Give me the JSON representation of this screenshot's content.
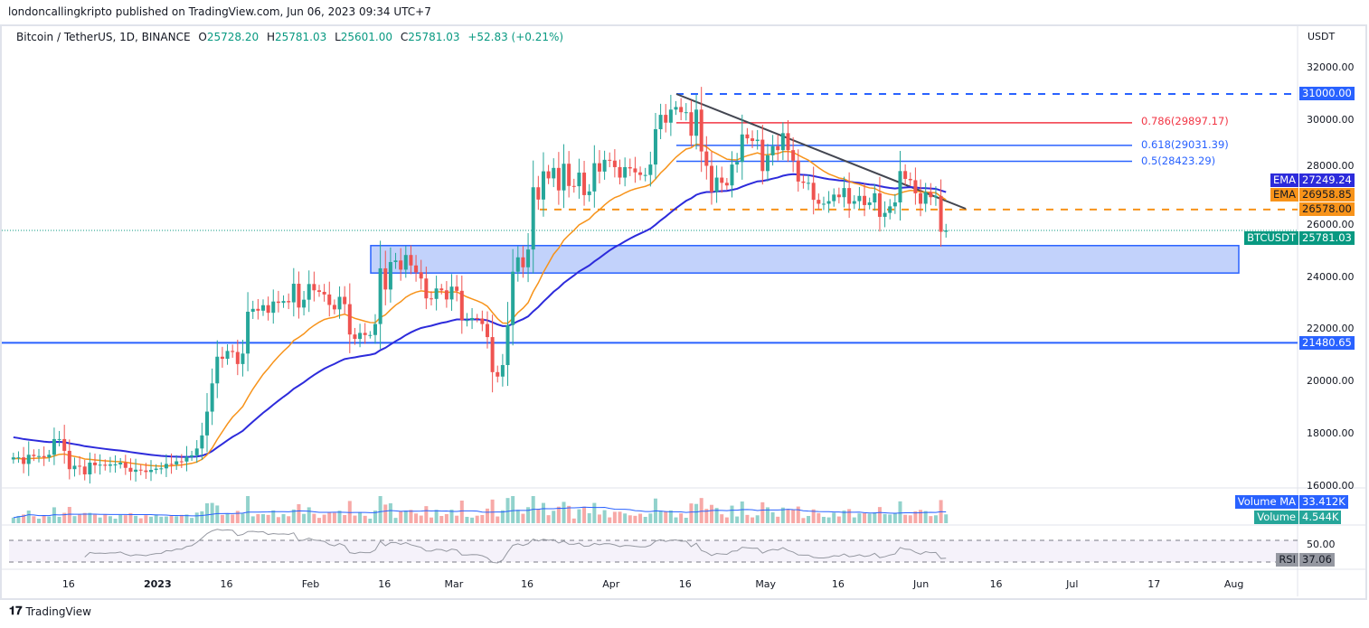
{
  "header": {
    "published": "londoncallingkripto published on TradingView.com, Jun 06, 2023 09:34 UTC+7"
  },
  "legend": {
    "symbol": "Bitcoin / TetherUS, 1D, BINANCE",
    "o_label": "O",
    "o": "25728.20",
    "h_label": "H",
    "h": "25781.03",
    "l_label": "L",
    "l": "25601.00",
    "c_label": "C",
    "c": "25781.03",
    "change": "+52.83 (+0.21%)"
  },
  "currency": "USDT",
  "tags": {
    "level_31000": "31000.00",
    "level_21480": "21480.65",
    "ema1_label": "EMA",
    "ema1_value": "27249.24",
    "ema2_label": "EMA",
    "ema2_value": "26958.85",
    "level_26578": "26578.00",
    "symbol_label": "BTCUSDT",
    "symbol_price": "25781.03",
    "vol_ma_label": "Volume MA",
    "vol_ma_value": "33.412K",
    "vol_label": "Volume",
    "vol_value": "4.544K",
    "rsi_label": "RSI",
    "rsi_value": "37.06",
    "rsi_level": "50.00"
  },
  "fib": {
    "f786": "0.786(29897.17)",
    "f618": "0.618(29031.39)",
    "f5": "0.5(28423.29)"
  },
  "colors": {
    "up": "#26a69a",
    "down": "#ef5350",
    "ema_fast": "#f7931a",
    "ema_slow": "#2d2bdb",
    "line": "#2962ff",
    "fib786": "#f23645",
    "zone": "#bbcdfb"
  },
  "footer": {
    "brand": "TradingView"
  },
  "chart_data": {
    "type": "candlestick",
    "title": "Bitcoin / TetherUS, 1D, BINANCE",
    "start_date": "2022-12-05",
    "ylim": [
      16000,
      32000
    ],
    "y_ticks": [
      "32000.00",
      "30000.00",
      "28000.00",
      "26000.00",
      "24000.00",
      "22000.00",
      "20000.00",
      "18000.00",
      "16000.00"
    ],
    "x_ticks": [
      {
        "label": "16",
        "day": -16
      },
      {
        "label": "2023",
        "day": 0
      },
      {
        "label": "16",
        "day": 15
      },
      {
        "label": "Feb",
        "day": 31
      },
      {
        "label": "16",
        "day": 46
      },
      {
        "label": "Mar",
        "day": 59
      },
      {
        "label": "16",
        "day": 74
      },
      {
        "label": "Apr",
        "day": 90
      },
      {
        "label": "16",
        "day": 105
      },
      {
        "label": "May",
        "day": 120
      },
      {
        "label": "16",
        "day": 135
      },
      {
        "label": "Jun",
        "day": 151
      },
      {
        "label": "16",
        "day": 166
      },
      {
        "label": "Jul",
        "day": 181
      },
      {
        "label": "17",
        "day": 197
      },
      {
        "label": "Aug",
        "day": 212
      }
    ],
    "closes": [
      17100,
      17100,
      16850,
      17200,
      17150,
      17150,
      17100,
      17200,
      17800,
      17800,
      17350,
      16650,
      16780,
      16750,
      16450,
      16900,
      16800,
      16820,
      16780,
      16830,
      16830,
      16900,
      16700,
      16550,
      16630,
      16600,
      16540,
      16620,
      16670,
      16680,
      16850,
      16830,
      16950,
      16940,
      17120,
      17180,
      17440,
      17940,
      18850,
      19930,
      20950,
      20870,
      21170,
      21130,
      20670,
      21070,
      22670,
      22780,
      22710,
      22920,
      22630,
      23060,
      23010,
      23080,
      23030,
      23740,
      22830,
      23130,
      23730,
      23490,
      23430,
      23330,
      22930,
      22760,
      23240,
      22960,
      21800,
      21630,
      21860,
      21780,
      21780,
      22200,
      24330,
      23520,
      24570,
      24630,
      24280,
      24840,
      24440,
      24180,
      23940,
      23180,
      23160,
      23560,
      23490,
      23140,
      23630,
      23470,
      22350,
      22350,
      22430,
      22410,
      22200,
      21700,
      20360,
      20190,
      20630,
      22160,
      24200,
      24750,
      24370,
      25050,
      27430,
      26960,
      28040,
      27770,
      28170,
      27310,
      28330,
      27480,
      27470,
      27990,
      27130,
      27270,
      28350,
      28030,
      28480,
      28450,
      28200,
      27800,
      28200,
      28150,
      28000,
      27900,
      27900,
      28300,
      29650,
      30200,
      29900,
      30400,
      30500,
      30300,
      30300,
      29400,
      30400,
      28800,
      28250,
      27250,
      27800,
      27600,
      27500,
      28300,
      28400,
      29450,
      29300,
      29200,
      29250,
      28050,
      28650,
      29000,
      28850,
      29500,
      28850,
      28450,
      27650,
      27600,
      27600,
      26950,
      26800,
      26800,
      26900,
      27150,
      27050,
      27400,
      26800,
      26900,
      27100,
      26750,
      26850,
      27200,
      26300,
      26450,
      26700,
      26850,
      28050,
      27750,
      27700,
      27200,
      26800,
      27250,
      27050,
      27100,
      25728,
      25781
    ],
    "levels": {
      "resistance": 31000,
      "support": 21480.65,
      "dashed": 26578,
      "fib_786": 29897.17,
      "fib_618": 29031.39,
      "fib_5": 28423.29,
      "demand_zone": [
        24150,
        25200
      ]
    },
    "ema_fast_last": 26958.85,
    "ema_slow_last": 27249.24,
    "rsi_last": 37.06
  }
}
